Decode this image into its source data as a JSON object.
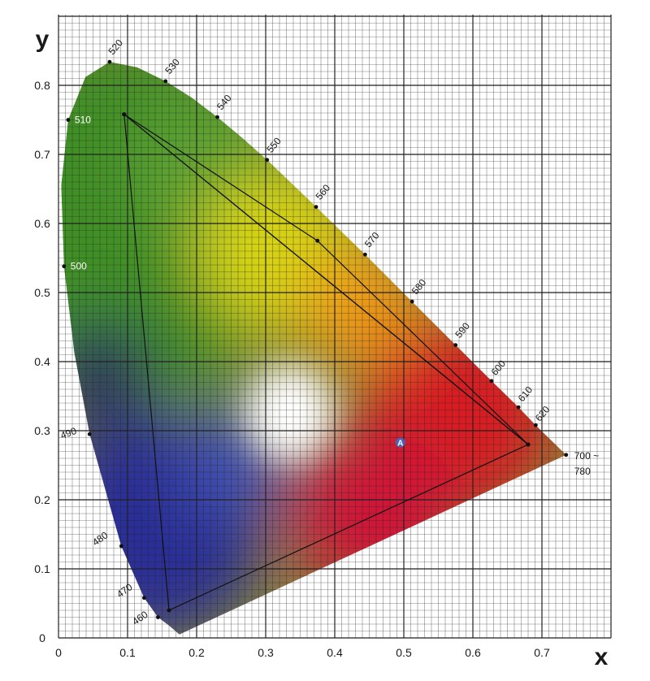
{
  "chart_data": {
    "type": "scatter",
    "title": "",
    "xlabel": "x",
    "ylabel": "y",
    "xlim": [
      0,
      0.8
    ],
    "ylim": [
      0,
      0.9
    ],
    "grid": true,
    "x_ticks": [
      "0",
      "0.1",
      "0.2",
      "0.3",
      "0.4",
      "0.5",
      "0.6",
      "0.7"
    ],
    "y_ticks": [
      "0",
      "0.1",
      "0.2",
      "0.3",
      "0.4",
      "0.5",
      "0.6",
      "0.7",
      "0.8"
    ],
    "spectral_locus": [
      {
        "label": "460",
        "x": 0.144,
        "y": 0.03
      },
      {
        "label": "470",
        "x": 0.124,
        "y": 0.058
      },
      {
        "label": "480",
        "x": 0.091,
        "y": 0.133
      },
      {
        "label": "490",
        "x": 0.045,
        "y": 0.295
      },
      {
        "label": "500",
        "x": 0.008,
        "y": 0.538
      },
      {
        "label": "510",
        "x": 0.014,
        "y": 0.75
      },
      {
        "label": "520",
        "x": 0.074,
        "y": 0.834
      },
      {
        "label": "530",
        "x": 0.155,
        "y": 0.806
      },
      {
        "label": "540",
        "x": 0.23,
        "y": 0.754
      },
      {
        "label": "550",
        "x": 0.302,
        "y": 0.692
      },
      {
        "label": "560",
        "x": 0.373,
        "y": 0.624
      },
      {
        "label": "570",
        "x": 0.444,
        "y": 0.555
      },
      {
        "label": "580",
        "x": 0.512,
        "y": 0.487
      },
      {
        "label": "590",
        "x": 0.575,
        "y": 0.424
      },
      {
        "label": "600",
        "x": 0.627,
        "y": 0.372
      },
      {
        "label": "610",
        "x": 0.666,
        "y": 0.334
      },
      {
        "label": "620",
        "x": 0.691,
        "y": 0.308
      },
      {
        "label": "700 ~",
        "x": 0.735,
        "y": 0.265
      },
      {
        "label": "780",
        "x": 0.735,
        "y": 0.265
      }
    ],
    "locus_boundary": [
      [
        0.175,
        0.005
      ],
      [
        0.16,
        0.018
      ],
      [
        0.144,
        0.03
      ],
      [
        0.124,
        0.058
      ],
      [
        0.091,
        0.133
      ],
      [
        0.045,
        0.295
      ],
      [
        0.023,
        0.413
      ],
      [
        0.008,
        0.538
      ],
      [
        0.004,
        0.655
      ],
      [
        0.014,
        0.75
      ],
      [
        0.039,
        0.812
      ],
      [
        0.074,
        0.834
      ],
      [
        0.114,
        0.826
      ],
      [
        0.155,
        0.806
      ],
      [
        0.193,
        0.782
      ],
      [
        0.23,
        0.754
      ],
      [
        0.266,
        0.724
      ],
      [
        0.302,
        0.692
      ],
      [
        0.373,
        0.624
      ],
      [
        0.444,
        0.555
      ],
      [
        0.512,
        0.487
      ],
      [
        0.575,
        0.424
      ],
      [
        0.627,
        0.372
      ],
      [
        0.666,
        0.334
      ],
      [
        0.691,
        0.308
      ],
      [
        0.735,
        0.265
      ],
      [
        0.175,
        0.005
      ]
    ],
    "triangles": [
      {
        "vertices": [
          [
            0.095,
            0.758
          ],
          [
            0.16,
            0.04
          ],
          [
            0.68,
            0.28
          ]
        ]
      },
      {
        "vertices": [
          [
            0.095,
            0.758
          ],
          [
            0.375,
            0.575
          ],
          [
            0.68,
            0.28
          ]
        ]
      }
    ],
    "marker": {
      "label": "A",
      "x": 0.495,
      "y": 0.283
    }
  }
}
